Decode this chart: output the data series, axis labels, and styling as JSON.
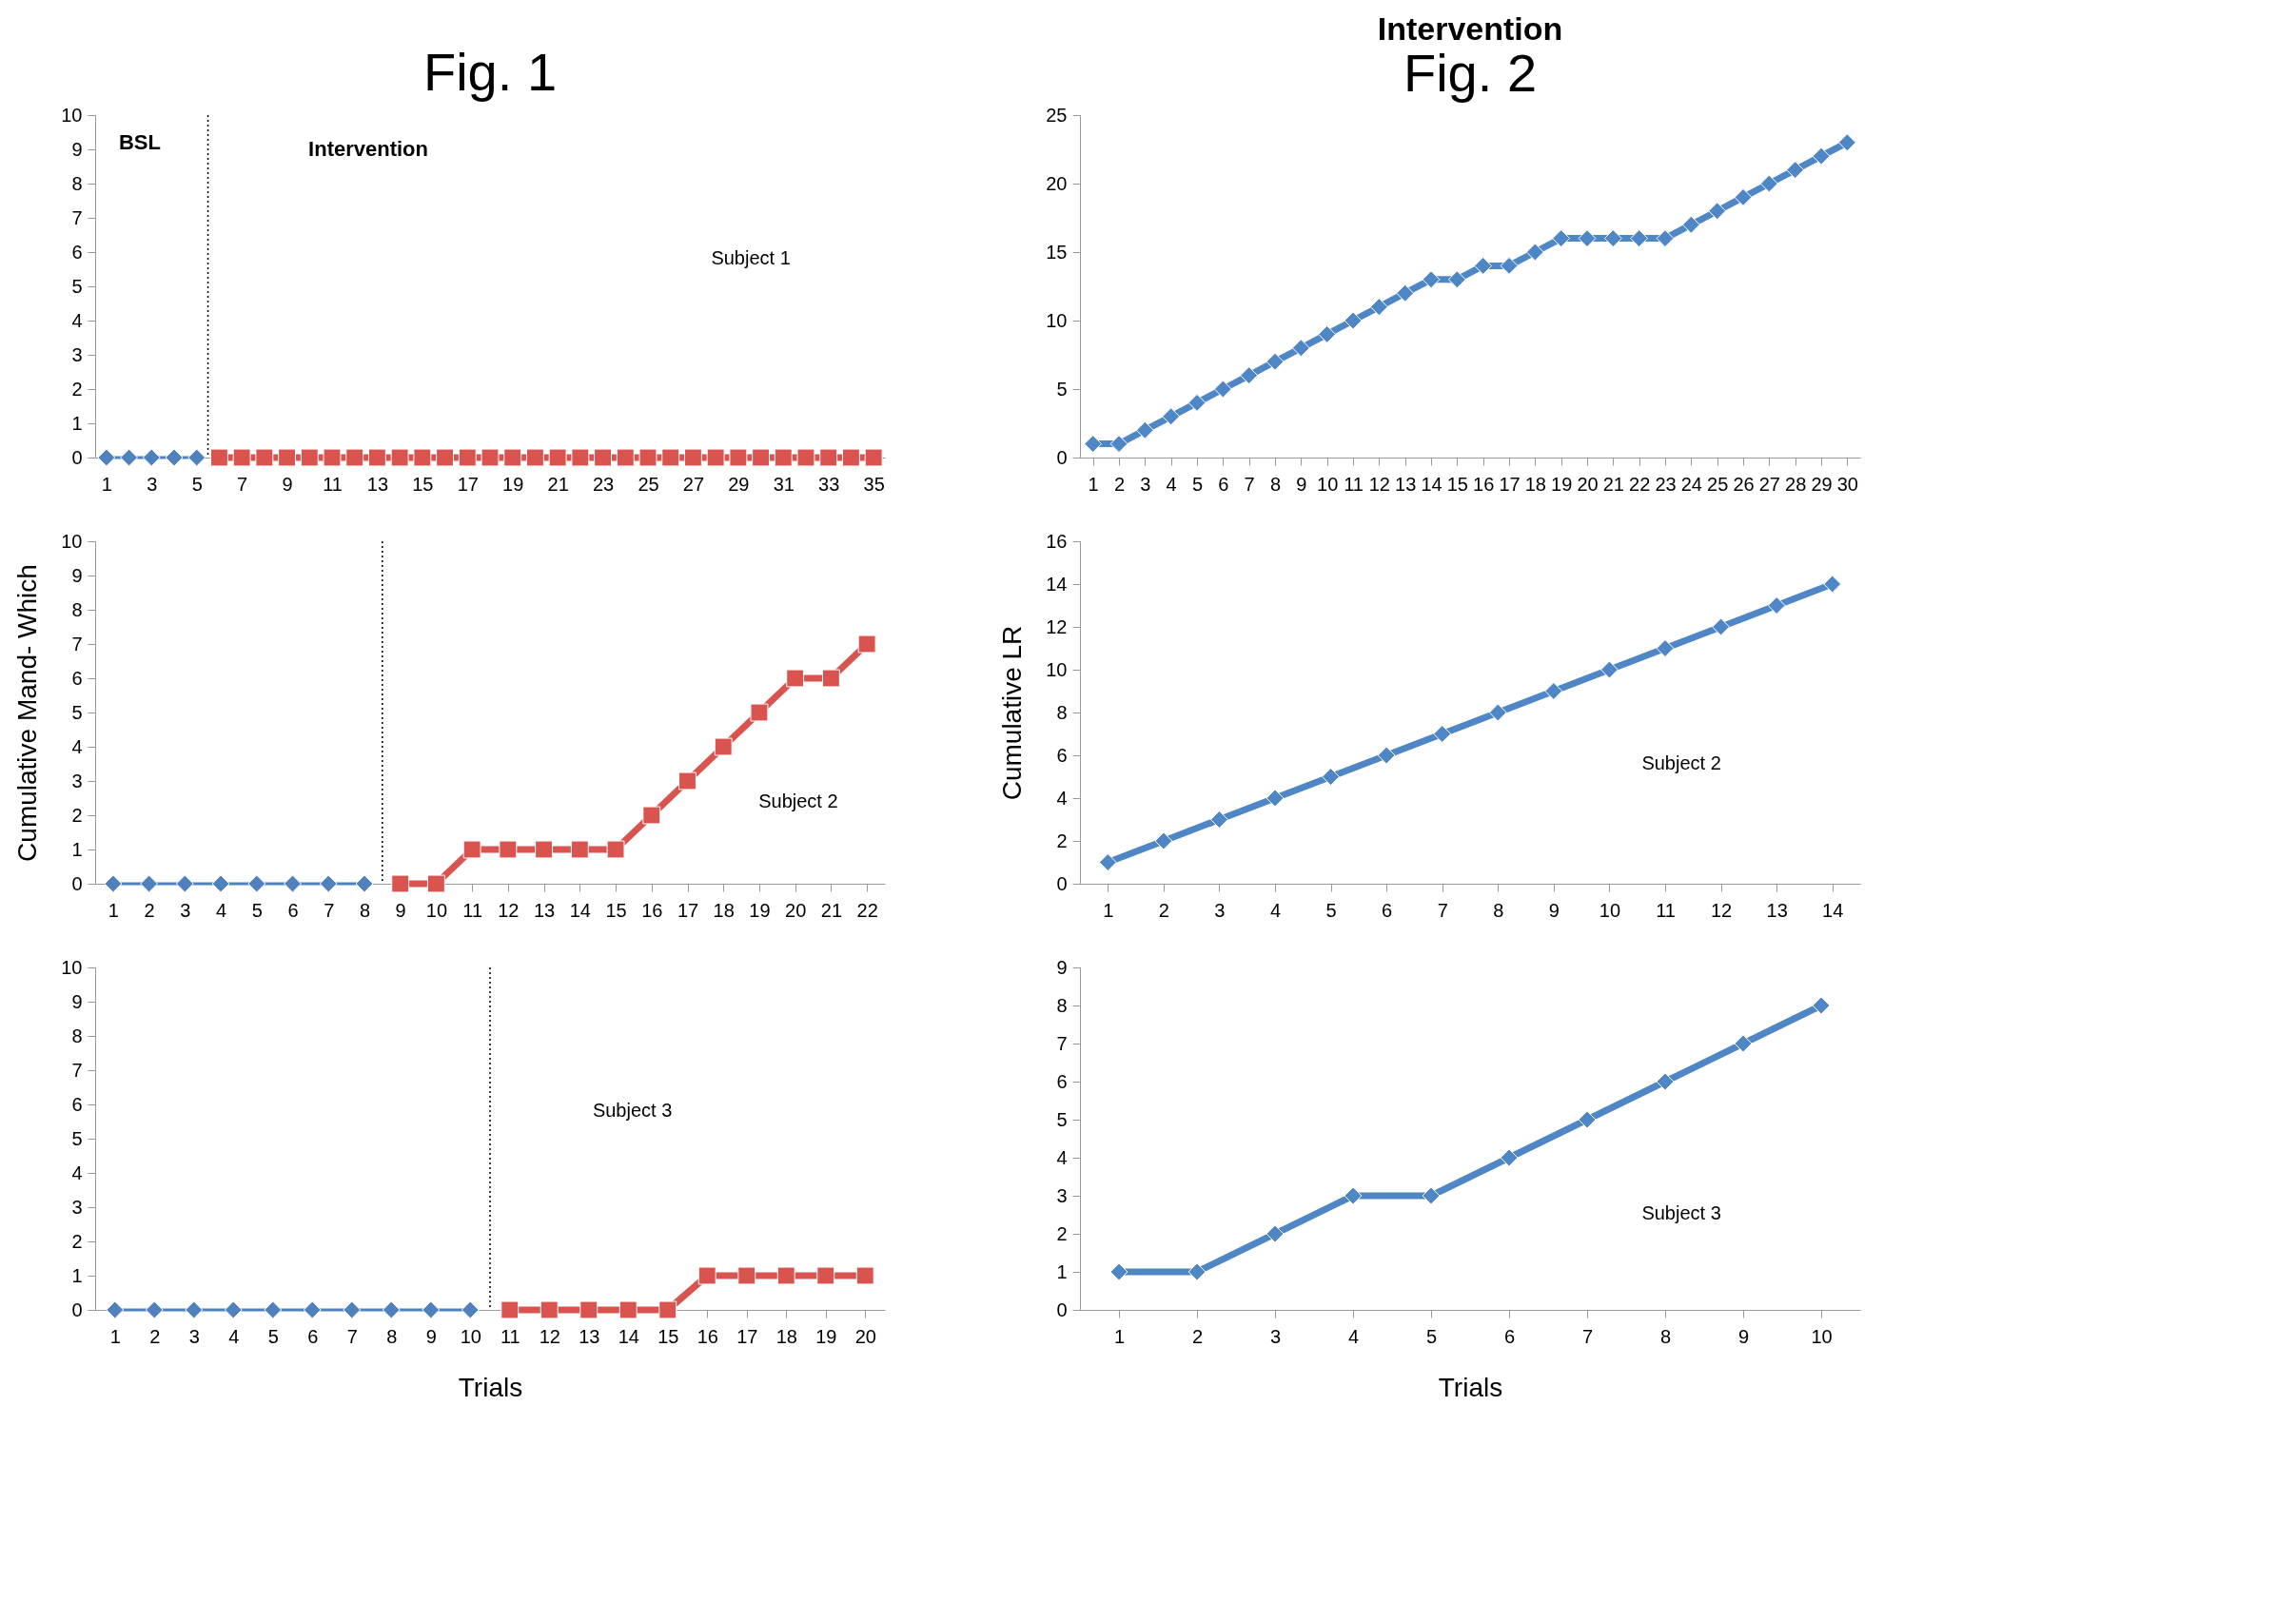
{
  "chart_data": [
    {
      "type": "line",
      "title": "Fig. 1",
      "annotations": [
        "BSL",
        "Intervention",
        "Subject 1"
      ],
      "x": [
        1,
        2,
        3,
        4,
        5,
        6,
        7,
        8,
        9,
        10,
        11,
        12,
        13,
        14,
        15,
        16,
        17,
        18,
        19,
        20,
        21,
        22,
        23,
        24,
        25,
        26,
        27,
        28,
        29,
        30,
        31,
        32,
        33,
        34,
        35
      ],
      "series": [
        {
          "color": "#4f81bd",
          "marker": "diamond",
          "values": [
            0,
            0,
            0,
            0,
            0,
            null,
            null,
            null,
            null,
            null,
            null,
            null,
            null,
            null,
            null,
            null,
            null,
            null,
            null,
            null,
            null,
            null,
            null,
            null,
            null,
            null,
            null,
            null,
            null,
            null,
            null,
            null,
            null,
            null,
            null
          ]
        },
        {
          "color": "#d9534f",
          "marker": "square",
          "values": [
            null,
            null,
            null,
            null,
            null,
            0,
            0,
            0,
            0,
            0,
            0,
            0,
            0,
            0,
            0,
            0,
            0,
            0,
            0,
            0,
            0,
            0,
            0,
            0,
            0,
            0,
            0,
            0,
            0,
            0,
            0,
            0,
            0,
            0,
            0
          ]
        }
      ],
      "xlim": [
        0.5,
        35.5
      ],
      "xticks": [
        1,
        3,
        5,
        7,
        9,
        11,
        13,
        15,
        17,
        19,
        21,
        23,
        25,
        27,
        29,
        31,
        33,
        35
      ],
      "ylim": [
        0,
        10
      ],
      "yticks": [
        0,
        1,
        2,
        3,
        4,
        5,
        6,
        7,
        8,
        9,
        10
      ],
      "grid": false,
      "ref_lines": [
        {
          "axis": "x",
          "value": 5.5,
          "color": "#000000",
          "line_style": "dotted"
        }
      ]
    },
    {
      "type": "line",
      "ylabel": "Cumulative Mand- Which",
      "annotations": [
        "Subject 2"
      ],
      "x": [
        1,
        2,
        3,
        4,
        5,
        6,
        7,
        8,
        9,
        10,
        11,
        12,
        13,
        14,
        15,
        16,
        17,
        18,
        19,
        20,
        21,
        22
      ],
      "series": [
        {
          "color": "#4f81bd",
          "marker": "diamond",
          "values": [
            0,
            0,
            0,
            0,
            0,
            0,
            0,
            0,
            null,
            null,
            null,
            null,
            null,
            null,
            null,
            null,
            null,
            null,
            null,
            null,
            null,
            null
          ]
        },
        {
          "color": "#d9534f",
          "marker": "square",
          "values": [
            null,
            null,
            null,
            null,
            null,
            null,
            null,
            null,
            0,
            0,
            1,
            1,
            1,
            1,
            1,
            2,
            3,
            4,
            5,
            6,
            6,
            7
          ]
        }
      ],
      "xlim": [
        0.5,
        22.5
      ],
      "xticks": [
        1,
        2,
        3,
        4,
        5,
        6,
        7,
        8,
        9,
        10,
        11,
        12,
        13,
        14,
        15,
        16,
        17,
        18,
        19,
        20,
        21,
        22
      ],
      "ylim": [
        0,
        10
      ],
      "yticks": [
        0,
        1,
        2,
        3,
        4,
        5,
        6,
        7,
        8,
        9,
        10
      ],
      "grid": false,
      "ref_lines": [
        {
          "axis": "x",
          "value": 8.5,
          "color": "#000000",
          "line_style": "dotted"
        }
      ]
    },
    {
      "type": "line",
      "xlabel": "Trials",
      "annotations": [
        "Subject 3"
      ],
      "x": [
        1,
        2,
        3,
        4,
        5,
        6,
        7,
        8,
        9,
        10,
        11,
        12,
        13,
        14,
        15,
        16,
        17,
        18,
        19,
        20
      ],
      "series": [
        {
          "color": "#4f81bd",
          "marker": "diamond",
          "values": [
            0,
            0,
            0,
            0,
            0,
            0,
            0,
            0,
            0,
            0,
            null,
            null,
            null,
            null,
            null,
            null,
            null,
            null,
            null,
            null
          ]
        },
        {
          "color": "#d9534f",
          "marker": "square",
          "values": [
            null,
            null,
            null,
            null,
            null,
            null,
            null,
            null,
            null,
            null,
            0,
            0,
            0,
            0,
            0,
            1,
            1,
            1,
            1,
            1
          ]
        }
      ],
      "xlim": [
        0.5,
        20.5
      ],
      "xticks": [
        1,
        2,
        3,
        4,
        5,
        6,
        7,
        8,
        9,
        10,
        11,
        12,
        13,
        14,
        15,
        16,
        17,
        18,
        19,
        20
      ],
      "ylim": [
        0,
        10
      ],
      "yticks": [
        0,
        1,
        2,
        3,
        4,
        5,
        6,
        7,
        8,
        9,
        10
      ],
      "grid": false,
      "ref_lines": [
        {
          "axis": "x",
          "value": 10.5,
          "color": "#000000",
          "line_style": "dotted"
        }
      ]
    },
    {
      "type": "line",
      "title": "Intervention",
      "subtitle": "Fig. 2",
      "x": [
        1,
        2,
        3,
        4,
        5,
        6,
        7,
        8,
        9,
        10,
        11,
        12,
        13,
        14,
        15,
        16,
        17,
        18,
        19,
        20,
        21,
        22,
        23,
        24,
        25,
        26,
        27,
        28,
        29,
        30
      ],
      "series": [
        {
          "color": "#4f86c6",
          "marker": "diamond",
          "values": [
            1,
            1,
            2,
            3,
            4,
            5,
            6,
            7,
            8,
            9,
            10,
            11,
            12,
            13,
            13,
            14,
            14,
            15,
            16,
            16,
            16,
            16,
            16,
            17,
            18,
            19,
            20,
            21,
            22,
            23
          ]
        }
      ],
      "xlim": [
        0.5,
        30.5
      ],
      "xticks": [
        1,
        2,
        3,
        4,
        5,
        6,
        7,
        8,
        9,
        10,
        11,
        12,
        13,
        14,
        15,
        16,
        17,
        18,
        19,
        20,
        21,
        22,
        23,
        24,
        25,
        26,
        27,
        28,
        29,
        30
      ],
      "ylim": [
        0,
        25
      ],
      "yticks": [
        0,
        5,
        10,
        15,
        20,
        25
      ],
      "grid": false
    },
    {
      "type": "line",
      "ylabel": "Cumulative LR",
      "annotations": [
        "Subject 2"
      ],
      "x": [
        1,
        2,
        3,
        4,
        5,
        6,
        7,
        8,
        9,
        10,
        11,
        12,
        13,
        14
      ],
      "series": [
        {
          "color": "#4f86c6",
          "marker": "diamond",
          "values": [
            1,
            2,
            3,
            4,
            5,
            6,
            7,
            8,
            9,
            10,
            11,
            12,
            13,
            14
          ]
        }
      ],
      "xlim": [
        0.5,
        14.5
      ],
      "xticks": [
        1,
        2,
        3,
        4,
        5,
        6,
        7,
        8,
        9,
        10,
        11,
        12,
        13,
        14
      ],
      "ylim": [
        0,
        16
      ],
      "yticks": [
        0,
        2,
        4,
        6,
        8,
        10,
        12,
        14,
        16
      ],
      "grid": false
    },
    {
      "type": "line",
      "xlabel": "Trials",
      "annotations": [
        "Subject 3"
      ],
      "x": [
        1,
        2,
        3,
        4,
        5,
        6,
        7,
        8,
        9,
        10
      ],
      "series": [
        {
          "color": "#4f86c6",
          "marker": "diamond",
          "values": [
            1,
            1,
            2,
            3,
            3,
            4,
            5,
            6,
            7,
            8
          ]
        }
      ],
      "xlim": [
        0.5,
        10.5
      ],
      "xticks": [
        1,
        2,
        3,
        4,
        5,
        6,
        7,
        8,
        9,
        10
      ],
      "ylim": [
        0,
        9
      ],
      "yticks": [
        0,
        1,
        2,
        3,
        4,
        5,
        6,
        7,
        8,
        9
      ],
      "grid": false
    }
  ]
}
